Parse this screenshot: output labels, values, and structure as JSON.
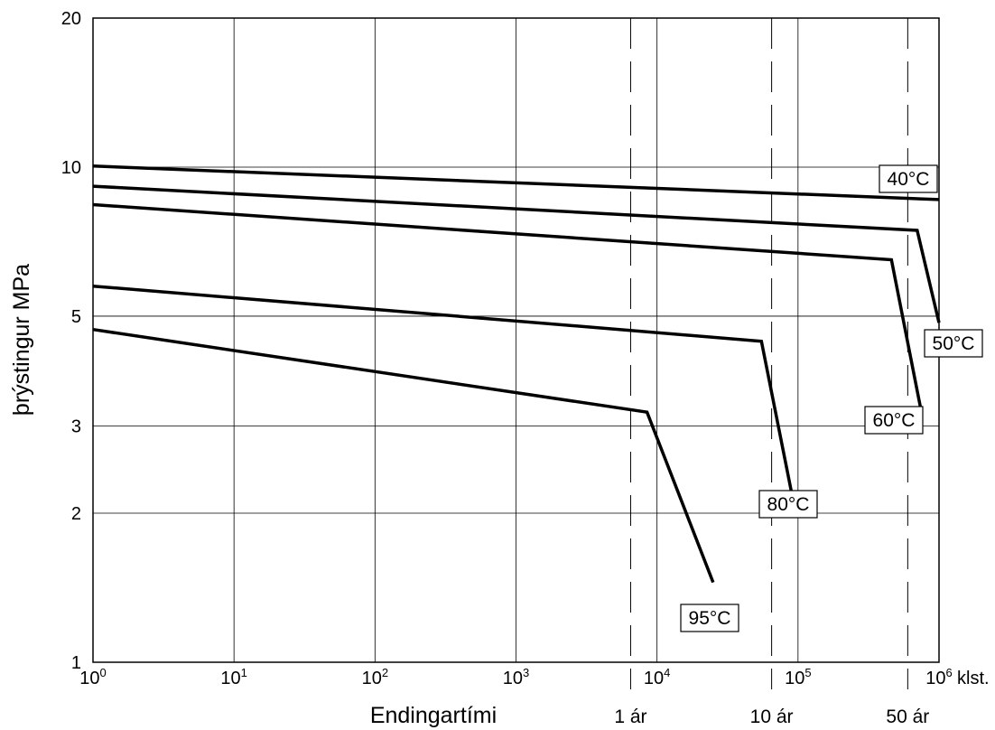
{
  "chart_data": {
    "type": "line",
    "title": "",
    "xlabel": "Endingartími",
    "ylabel": "þrýstingur MPa",
    "x_scale": "log",
    "y_scale": "log",
    "xlim": [
      1,
      1000000
    ],
    "ylim": [
      1,
      20
    ],
    "x_ticks": [
      {
        "base": "10",
        "exp": "0",
        "value": 1
      },
      {
        "base": "10",
        "exp": "1",
        "value": 10
      },
      {
        "base": "10",
        "exp": "2",
        "value": 100
      },
      {
        "base": "10",
        "exp": "3",
        "value": 1000
      },
      {
        "base": "10",
        "exp": "4",
        "value": 10000
      },
      {
        "base": "10",
        "exp": "5",
        "value": 100000
      },
      {
        "base": "10",
        "exp": "6",
        "value": 1000000
      }
    ],
    "x_unit": "klst.",
    "y_ticks": [
      {
        "label": "1",
        "value": 1
      },
      {
        "label": "2",
        "value": 2
      },
      {
        "label": "3",
        "value": 3
      },
      {
        "label": "5",
        "value": 5
      },
      {
        "label": "10",
        "value": 10
      },
      {
        "label": "20",
        "value": 20
      }
    ],
    "grid": true,
    "time_markers": [
      {
        "label": "1 ár",
        "x": 6500
      },
      {
        "label": "10 ár",
        "x": 65000
      },
      {
        "label": "50 ár",
        "x": 600000
      }
    ],
    "series": [
      {
        "name": "40°C",
        "x": [
          1,
          1000000
        ],
        "y": [
          10.05,
          8.6
        ]
      },
      {
        "name": "50°C",
        "x": [
          1,
          700000,
          1000000
        ],
        "y": [
          9.15,
          7.45,
          4.85
        ]
      },
      {
        "name": "60°C",
        "x": [
          1,
          460000,
          750000
        ],
        "y": [
          8.4,
          6.5,
          3.2
        ]
      },
      {
        "name": "80°C",
        "x": [
          1,
          55000,
          90000
        ],
        "y": [
          5.75,
          4.45,
          2.2
        ]
      },
      {
        "name": "95°C",
        "x": [
          1,
          8500,
          25000
        ],
        "y": [
          4.7,
          3.2,
          1.45
        ]
      }
    ]
  }
}
